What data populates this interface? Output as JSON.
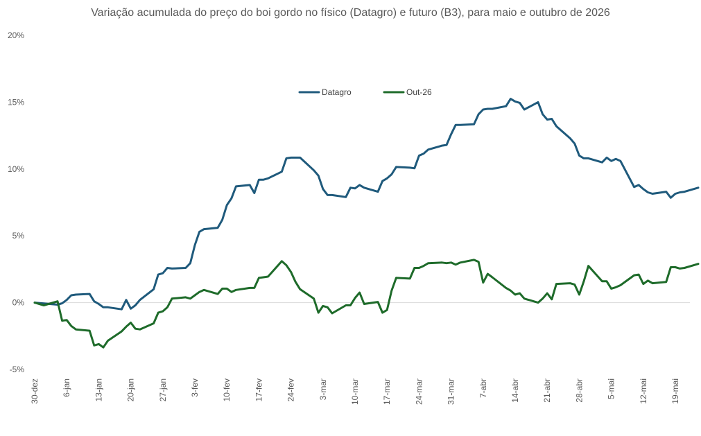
{
  "chart_data": {
    "type": "line",
    "title": "Variação acumulada do preço do boi gordo no físico (Datagro) e futuro (B3), para maio e outubro de 2026",
    "xlabel": "",
    "ylabel": "",
    "ylim": [
      -5,
      20
    ],
    "yticks": [
      -5,
      0,
      5,
      10,
      15,
      20
    ],
    "ytick_labels": [
      "-5%",
      "0%",
      "5%",
      "10%",
      "15%",
      "20%"
    ],
    "x_tick_labels": [
      "30-dez",
      "6-jan",
      "13-jan",
      "20-jan",
      "27-jan",
      "3-fev",
      "10-fev",
      "17-fev",
      "24-fev",
      "3-mar",
      "10-mar",
      "17-mar",
      "24-mar",
      "31-mar",
      "7-abr",
      "14-abr",
      "21-abr",
      "28-abr",
      "5-mai",
      "12-mai",
      "19-mai"
    ],
    "x_unit": "days since 30-dez",
    "legend_position": "top-center",
    "grid": false,
    "series": [
      {
        "name": "Datagro",
        "color": "#1f5a7c",
        "x": [
          0,
          5,
          6,
          7,
          8,
          9,
          12,
          13,
          14,
          15,
          16,
          19,
          20,
          21,
          22,
          23,
          26,
          27,
          28,
          29,
          30,
          33,
          34,
          35,
          36,
          37,
          40,
          41,
          42,
          43,
          44,
          47,
          48,
          49,
          50,
          51,
          54,
          55,
          56,
          57,
          58,
          61,
          62,
          63,
          64,
          65,
          68,
          69,
          70,
          71,
          72,
          75,
          76,
          77,
          78,
          79,
          82,
          83,
          84,
          85,
          86,
          89,
          90,
          91,
          92,
          93,
          96,
          97,
          98,
          99,
          100,
          103,
          104,
          105,
          106,
          107,
          110,
          111,
          112,
          113,
          114,
          117,
          118,
          119,
          120,
          121,
          124,
          125,
          126,
          127,
          128,
          131,
          132,
          133,
          134,
          135,
          138,
          139,
          140,
          141,
          142,
          145
        ],
        "values": [
          0,
          -0.15,
          -0.05,
          0.2,
          0.55,
          0.6,
          0.65,
          0.1,
          -0.1,
          -0.35,
          -0.35,
          -0.5,
          0.2,
          -0.45,
          -0.2,
          0.2,
          1.0,
          2.1,
          2.2,
          2.6,
          2.55,
          2.6,
          2.95,
          4.3,
          5.3,
          5.5,
          5.6,
          6.2,
          7.3,
          7.8,
          8.7,
          8.8,
          8.2,
          9.2,
          9.2,
          9.3,
          9.8,
          10.8,
          10.85,
          10.85,
          10.85,
          9.9,
          9.5,
          8.5,
          8.05,
          8.05,
          7.9,
          8.6,
          8.55,
          8.8,
          8.6,
          8.3,
          9.1,
          9.3,
          9.6,
          10.15,
          10.1,
          10.05,
          11.0,
          11.15,
          11.45,
          11.75,
          11.8,
          12.6,
          13.3,
          13.3,
          13.35,
          14.1,
          14.45,
          14.5,
          14.5,
          14.7,
          15.25,
          15.05,
          14.95,
          14.45,
          15.0,
          14.1,
          13.7,
          13.75,
          13.2,
          12.3,
          11.9,
          11.0,
          10.8,
          10.8,
          10.5,
          10.85,
          10.6,
          10.75,
          10.6,
          8.65,
          8.8,
          8.5,
          8.25,
          8.15,
          8.3,
          7.85,
          8.15,
          8.25,
          8.3,
          8.6
        ]
      },
      {
        "name": "Out-26",
        "color": "#1e6b2a",
        "x": [
          0,
          2,
          5,
          6,
          7,
          8,
          9,
          12,
          13,
          14,
          15,
          16,
          19,
          20,
          21,
          22,
          23,
          26,
          27,
          28,
          29,
          30,
          33,
          34,
          35,
          36,
          37,
          40,
          41,
          42,
          43,
          44,
          47,
          48,
          49,
          50,
          51,
          54,
          55,
          56,
          57,
          58,
          61,
          62,
          63,
          64,
          65,
          68,
          69,
          70,
          71,
          72,
          75,
          76,
          77,
          78,
          79,
          82,
          83,
          84,
          85,
          86,
          89,
          90,
          91,
          92,
          93,
          96,
          97,
          98,
          99,
          100,
          103,
          104,
          105,
          106,
          107,
          110,
          111,
          112,
          113,
          114,
          117,
          118,
          119,
          120,
          121,
          124,
          125,
          126,
          127,
          128,
          131,
          132,
          133,
          134,
          135,
          138,
          139,
          140,
          141,
          142,
          145
        ],
        "values": [
          0,
          -0.2,
          0.1,
          -1.35,
          -1.3,
          -1.75,
          -2.0,
          -2.1,
          -3.2,
          -3.1,
          -3.35,
          -2.85,
          -2.15,
          -1.8,
          -1.5,
          -1.95,
          -2.0,
          -1.55,
          -0.75,
          -0.65,
          -0.35,
          0.3,
          0.4,
          0.3,
          0.55,
          0.8,
          0.95,
          0.65,
          1.05,
          1.05,
          0.8,
          0.95,
          1.1,
          1.1,
          1.85,
          1.9,
          1.95,
          3.1,
          2.8,
          2.3,
          1.55,
          1.0,
          0.3,
          -0.75,
          -0.25,
          -0.35,
          -0.8,
          -0.2,
          -0.2,
          0.35,
          0.75,
          -0.1,
          0.05,
          -0.75,
          -0.55,
          0.9,
          1.85,
          1.8,
          2.6,
          2.6,
          2.75,
          2.95,
          3.0,
          2.95,
          3.0,
          2.85,
          3.0,
          3.2,
          3.05,
          1.5,
          2.15,
          1.9,
          1.1,
          0.9,
          0.6,
          0.7,
          0.3,
          0.0,
          0.3,
          0.7,
          0.25,
          1.4,
          1.45,
          1.35,
          0.6,
          1.6,
          2.75,
          1.6,
          1.6,
          1.05,
          1.15,
          1.3,
          2.05,
          2.1,
          1.4,
          1.65,
          1.45,
          1.55,
          2.65,
          2.65,
          2.55,
          2.6,
          2.9
        ]
      }
    ]
  }
}
